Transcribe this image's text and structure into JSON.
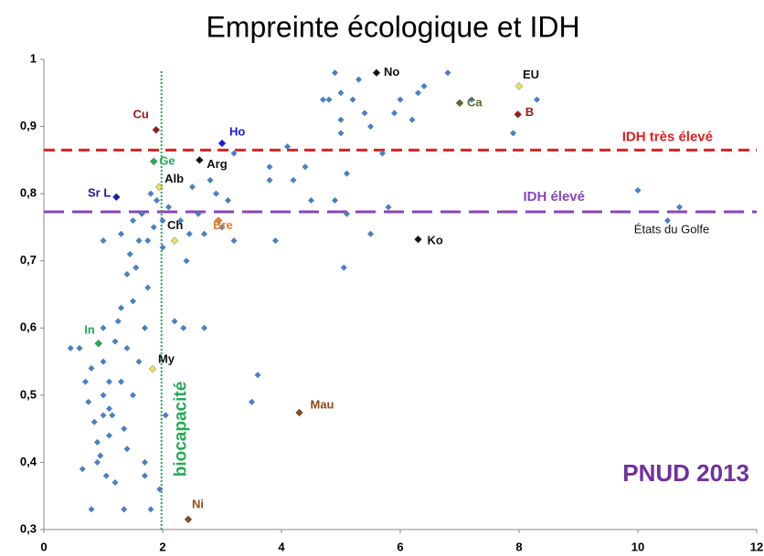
{
  "chart_data": {
    "type": "scatter",
    "title": "Empreinte écologique et IDH",
    "xlim": [
      0,
      12
    ],
    "xticks": [
      0,
      2,
      4,
      6,
      8,
      10,
      12
    ],
    "ylim": [
      0.3,
      1
    ],
    "yticks": [
      {
        "value": 0.3,
        "label": "0,3"
      },
      {
        "value": 0.4,
        "label": "0,4"
      },
      {
        "value": 0.5,
        "label": "0,5"
      },
      {
        "value": 0.6,
        "label": "0,6"
      },
      {
        "value": 0.7,
        "label": "0,7"
      },
      {
        "value": 0.8,
        "label": "0,8"
      },
      {
        "value": 0.9,
        "label": "0,9"
      },
      1
    ],
    "grid": false,
    "series": [
      {
        "color": "#4a7fc1",
        "x": [
          0.45,
          0.6,
          0.65,
          0.7,
          0.75,
          0.8,
          0.8,
          0.85,
          0.9,
          0.9,
          0.95,
          1.0,
          1.0,
          1.0,
          1.0,
          1.0,
          1.05,
          1.1,
          1.1,
          1.1,
          1.15,
          1.2,
          1.2,
          1.25,
          1.3,
          1.3,
          1.3,
          1.35,
          1.35,
          1.4,
          1.4,
          1.4,
          1.45,
          1.5,
          1.5,
          1.5,
          1.55,
          1.6,
          1.6,
          1.65,
          1.7,
          1.7,
          1.7,
          1.75,
          1.75,
          1.8,
          1.8,
          1.85,
          1.9,
          1.95,
          2.0,
          2.0,
          2.05,
          2.1,
          2.2,
          2.3,
          2.35,
          2.4,
          2.45,
          2.5,
          2.6,
          2.7,
          2.7,
          2.8,
          2.9,
          3.0,
          3.1,
          3.2,
          3.2,
          3.5,
          3.6,
          3.8,
          3.8,
          3.9,
          4.1,
          4.2,
          4.4,
          4.5,
          4.7,
          4.8,
          4.9,
          4.9,
          5.0,
          5.0,
          5.0,
          5.05,
          5.1,
          5.1,
          5.2,
          5.3,
          5.4,
          5.5,
          5.5,
          5.7,
          5.8,
          5.9,
          6.0,
          6.2,
          6.3,
          6.4,
          6.8,
          7.2,
          7.9,
          8.3,
          10.0,
          10.5,
          10.7
        ],
        "values": [
          0.57,
          0.57,
          0.39,
          0.52,
          0.49,
          0.33,
          0.54,
          0.46,
          0.43,
          0.4,
          0.41,
          0.55,
          0.5,
          0.47,
          0.6,
          0.73,
          0.38,
          0.52,
          0.48,
          0.44,
          0.47,
          0.58,
          0.37,
          0.61,
          0.74,
          0.63,
          0.52,
          0.33,
          0.45,
          0.68,
          0.57,
          0.42,
          0.71,
          0.76,
          0.64,
          0.5,
          0.69,
          0.73,
          0.55,
          0.77,
          0.6,
          0.4,
          0.38,
          0.66,
          0.73,
          0.33,
          0.8,
          0.75,
          0.79,
          0.36,
          0.72,
          0.76,
          0.47,
          0.78,
          0.61,
          0.76,
          0.6,
          0.7,
          0.74,
          0.81,
          0.77,
          0.6,
          0.74,
          0.82,
          0.8,
          0.75,
          0.79,
          0.73,
          0.86,
          0.49,
          0.53,
          0.84,
          0.82,
          0.73,
          0.87,
          0.82,
          0.84,
          0.79,
          0.94,
          0.94,
          0.98,
          0.79,
          0.95,
          0.91,
          0.89,
          0.69,
          0.83,
          0.77,
          0.94,
          0.97,
          0.92,
          0.9,
          0.74,
          0.86,
          0.78,
          0.92,
          0.94,
          0.91,
          0.95,
          0.96,
          0.98,
          0.94,
          0.89,
          0.94,
          0.805,
          0.76,
          0.78
        ]
      }
    ],
    "labeled_points": [
      {
        "label": "No",
        "x": 5.6,
        "y": 0.98,
        "color": "#111111"
      },
      {
        "label": "EU",
        "x": 8.0,
        "y": 0.96,
        "color": "#e8e060"
      },
      {
        "label": "Ca",
        "x": 7.0,
        "y": 0.935,
        "color": "#5a6a2a"
      },
      {
        "label": "B",
        "x": 7.98,
        "y": 0.918,
        "color": "#a01818"
      },
      {
        "label": "Cu",
        "x": 1.89,
        "y": 0.895,
        "color": "#a01818"
      },
      {
        "label": "Ho",
        "x": 3.0,
        "y": 0.875,
        "color": "#1a1aee"
      },
      {
        "label": "Ge",
        "x": 1.85,
        "y": 0.848,
        "color": "#22aa55"
      },
      {
        "label": "Arg",
        "x": 2.62,
        "y": 0.85,
        "color": "#111111"
      },
      {
        "label": "Alb",
        "x": 1.94,
        "y": 0.81,
        "color": "#e8e060"
      },
      {
        "label": "Sr L",
        "x": 1.22,
        "y": 0.795,
        "color": "#1a1aaa"
      },
      {
        "label": "Bre",
        "x": 2.94,
        "y": 0.76,
        "color": "#e08030"
      },
      {
        "label": "Ch",
        "x": 2.2,
        "y": 0.73,
        "color": "#e8e060"
      },
      {
        "label": "Ko",
        "x": 6.3,
        "y": 0.732,
        "color": "#111111"
      },
      {
        "label": "In",
        "x": 0.92,
        "y": 0.577,
        "color": "#22aa55"
      },
      {
        "label": "My",
        "x": 1.83,
        "y": 0.539,
        "color": "#e8e060"
      },
      {
        "label": "Mau",
        "x": 4.3,
        "y": 0.474,
        "color": "#8b4a1a"
      },
      {
        "label": "Ni",
        "x": 2.43,
        "y": 0.315,
        "color": "#8b4a1a"
      }
    ],
    "hlines": [
      {
        "value": 0.865,
        "label": "IDH très élevé",
        "color": "#e02020"
      },
      {
        "value": 0.773,
        "label": "IDH élevé",
        "color": "#8844bb"
      }
    ],
    "vline": {
      "value": 1.98,
      "label": "biocapacité",
      "color": "#22aa55"
    },
    "annotations": [
      {
        "text": "États du Golfe"
      },
      {
        "text": "PNUD 2013",
        "color": "#7030a0"
      }
    ]
  }
}
